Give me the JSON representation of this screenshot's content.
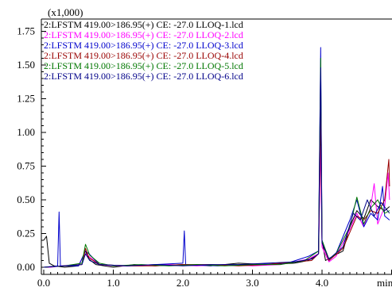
{
  "chart_data": {
    "type": "line",
    "y_multiplier_label": "(x1,000)",
    "xlabel": "min",
    "xlim": [
      0.0,
      5.0
    ],
    "ylim": [
      -0.05,
      1.8
    ],
    "x_ticks": [
      {
        "value": 0.0,
        "label": "0.0"
      },
      {
        "value": 1.0,
        "label": "1.0"
      },
      {
        "value": 2.0,
        "label": "2.0"
      },
      {
        "value": 3.0,
        "label": "3.0"
      },
      {
        "value": 4.0,
        "label": "4.0"
      }
    ],
    "y_ticks": [
      {
        "value": 0.0,
        "label": "0.00"
      },
      {
        "value": 0.25,
        "label": "0.25"
      },
      {
        "value": 0.5,
        "label": "0.50"
      },
      {
        "value": 0.75,
        "label": "0.75"
      },
      {
        "value": 1.0,
        "label": "1.00"
      },
      {
        "value": 1.25,
        "label": "1.25"
      },
      {
        "value": 1.5,
        "label": "1.50"
      },
      {
        "value": 1.75,
        "label": "1.75"
      }
    ],
    "legend_placement": "top-left",
    "series": [
      {
        "name": "2:LFSTM 419.00>186.95(+) CE: -27.0 LLOQ-1.lcd",
        "color": "#000000",
        "points": [
          [
            0.0,
            0.2
          ],
          [
            0.04,
            0.23
          ],
          [
            0.08,
            0.03
          ],
          [
            0.15,
            0.01
          ],
          [
            0.3,
            0.0
          ],
          [
            0.5,
            0.01
          ],
          [
            0.6,
            0.12
          ],
          [
            0.65,
            0.06
          ],
          [
            0.75,
            0.02
          ],
          [
            1.0,
            0.0
          ],
          [
            1.3,
            0.02
          ],
          [
            1.6,
            0.01
          ],
          [
            2.0,
            0.02
          ],
          [
            2.4,
            0.01
          ],
          [
            2.8,
            0.03
          ],
          [
            3.2,
            0.02
          ],
          [
            3.6,
            0.03
          ],
          [
            3.8,
            0.05
          ],
          [
            3.95,
            0.1
          ],
          [
            3.98,
            1.05
          ],
          [
            4.0,
            0.2
          ],
          [
            4.05,
            0.05
          ],
          [
            4.15,
            0.08
          ],
          [
            4.3,
            0.12
          ],
          [
            4.4,
            0.3
          ],
          [
            4.5,
            0.42
          ],
          [
            4.6,
            0.36
          ],
          [
            4.7,
            0.5
          ],
          [
            4.8,
            0.45
          ],
          [
            4.9,
            0.42
          ],
          [
            4.97,
            0.45
          ]
        ]
      },
      {
        "name": "2:LFSTM 419.00>186.95(+) CE: -27.0 LLOQ-2.lcd",
        "color": "#ff00ff",
        "points": [
          [
            0.0,
            0.0
          ],
          [
            0.1,
            0.0
          ],
          [
            0.25,
            0.01
          ],
          [
            0.5,
            0.02
          ],
          [
            0.6,
            0.1
          ],
          [
            0.65,
            0.08
          ],
          [
            0.8,
            0.02
          ],
          [
            1.0,
            0.01
          ],
          [
            1.4,
            0.01
          ],
          [
            1.8,
            0.02
          ],
          [
            2.2,
            0.01
          ],
          [
            2.6,
            0.02
          ],
          [
            3.0,
            0.01
          ],
          [
            3.4,
            0.02
          ],
          [
            3.8,
            0.06
          ],
          [
            3.95,
            0.1
          ],
          [
            3.98,
            0.9
          ],
          [
            4.0,
            0.15
          ],
          [
            4.1,
            0.04
          ],
          [
            4.2,
            0.08
          ],
          [
            4.4,
            0.28
          ],
          [
            4.5,
            0.4
          ],
          [
            4.6,
            0.3
          ],
          [
            4.7,
            0.45
          ],
          [
            4.75,
            0.62
          ],
          [
            4.8,
            0.32
          ],
          [
            4.9,
            0.45
          ],
          [
            4.95,
            0.7
          ],
          [
            4.97,
            0.5
          ]
        ]
      },
      {
        "name": "2:LFSTM 419.00>186.95(+) CE: -27.0 LLOQ-3.lcd",
        "color": "#0000cc",
        "points": [
          [
            0.0,
            0.0
          ],
          [
            0.2,
            0.01
          ],
          [
            0.22,
            0.41
          ],
          [
            0.24,
            0.01
          ],
          [
            0.5,
            0.01
          ],
          [
            0.6,
            0.12
          ],
          [
            0.65,
            0.1
          ],
          [
            0.8,
            0.02
          ],
          [
            1.2,
            0.01
          ],
          [
            1.6,
            0.02
          ],
          [
            2.0,
            0.03
          ],
          [
            2.02,
            0.27
          ],
          [
            2.04,
            0.02
          ],
          [
            2.5,
            0.01
          ],
          [
            3.0,
            0.02
          ],
          [
            3.5,
            0.03
          ],
          [
            3.8,
            0.08
          ],
          [
            3.95,
            0.12
          ],
          [
            3.98,
            1.63
          ],
          [
            4.0,
            0.2
          ],
          [
            4.1,
            0.05
          ],
          [
            4.2,
            0.1
          ],
          [
            4.4,
            0.35
          ],
          [
            4.5,
            0.5
          ],
          [
            4.6,
            0.3
          ],
          [
            4.7,
            0.4
          ],
          [
            4.8,
            0.35
          ],
          [
            4.87,
            0.6
          ],
          [
            4.9,
            0.38
          ],
          [
            4.97,
            0.35
          ]
        ]
      },
      {
        "name": "2:LFSTM 419.00>186.95(+) CE: -27.0 LLOQ-4.lcd",
        "color": "#990000",
        "points": [
          [
            0.0,
            0.0
          ],
          [
            0.3,
            0.01
          ],
          [
            0.55,
            0.02
          ],
          [
            0.6,
            0.14
          ],
          [
            0.65,
            0.07
          ],
          [
            0.8,
            0.02
          ],
          [
            1.2,
            0.01
          ],
          [
            1.6,
            0.01
          ],
          [
            2.0,
            0.02
          ],
          [
            2.4,
            0.02
          ],
          [
            2.8,
            0.01
          ],
          [
            3.2,
            0.02
          ],
          [
            3.6,
            0.04
          ],
          [
            3.85,
            0.05
          ],
          [
            3.95,
            0.1
          ],
          [
            3.98,
            1.15
          ],
          [
            4.0,
            0.18
          ],
          [
            4.1,
            0.05
          ],
          [
            4.3,
            0.14
          ],
          [
            4.5,
            0.38
          ],
          [
            4.6,
            0.35
          ],
          [
            4.7,
            0.42
          ],
          [
            4.8,
            0.4
          ],
          [
            4.9,
            0.5
          ],
          [
            4.96,
            0.8
          ],
          [
            4.97,
            0.6
          ]
        ]
      },
      {
        "name": "2:LFSTM 419.00>186.95(+) CE: -27.0 LLOQ-5.lcd",
        "color": "#007700",
        "points": [
          [
            0.0,
            0.0
          ],
          [
            0.3,
            0.01
          ],
          [
            0.55,
            0.03
          ],
          [
            0.6,
            0.17
          ],
          [
            0.66,
            0.09
          ],
          [
            0.8,
            0.03
          ],
          [
            1.0,
            0.01
          ],
          [
            1.4,
            0.02
          ],
          [
            1.8,
            0.01
          ],
          [
            2.2,
            0.02
          ],
          [
            2.6,
            0.01
          ],
          [
            3.0,
            0.02
          ],
          [
            3.4,
            0.02
          ],
          [
            3.75,
            0.05
          ],
          [
            3.95,
            0.12
          ],
          [
            3.98,
            1.55
          ],
          [
            4.0,
            0.2
          ],
          [
            4.1,
            0.06
          ],
          [
            4.2,
            0.1
          ],
          [
            4.4,
            0.3
          ],
          [
            4.5,
            0.52
          ],
          [
            4.6,
            0.32
          ],
          [
            4.7,
            0.44
          ],
          [
            4.8,
            0.5
          ],
          [
            4.9,
            0.4
          ],
          [
            4.97,
            0.42
          ]
        ]
      },
      {
        "name": "2:LFSTM 419.00>186.95(+) CE: -27.0 LLOQ-6.lcd",
        "color": "#000088",
        "points": [
          [
            0.0,
            0.0
          ],
          [
            0.3,
            0.01
          ],
          [
            0.55,
            0.02
          ],
          [
            0.6,
            0.1
          ],
          [
            0.66,
            0.05
          ],
          [
            0.8,
            0.02
          ],
          [
            1.2,
            0.01
          ],
          [
            1.6,
            0.02
          ],
          [
            2.0,
            0.01
          ],
          [
            2.4,
            0.02
          ],
          [
            2.8,
            0.02
          ],
          [
            3.2,
            0.03
          ],
          [
            3.6,
            0.04
          ],
          [
            3.85,
            0.06
          ],
          [
            3.95,
            0.1
          ],
          [
            3.98,
            1.48
          ],
          [
            4.0,
            0.18
          ],
          [
            4.1,
            0.06
          ],
          [
            4.3,
            0.15
          ],
          [
            4.45,
            0.4
          ],
          [
            4.55,
            0.35
          ],
          [
            4.65,
            0.5
          ],
          [
            4.75,
            0.38
          ],
          [
            4.85,
            0.48
          ],
          [
            4.97,
            0.4
          ]
        ]
      }
    ]
  }
}
